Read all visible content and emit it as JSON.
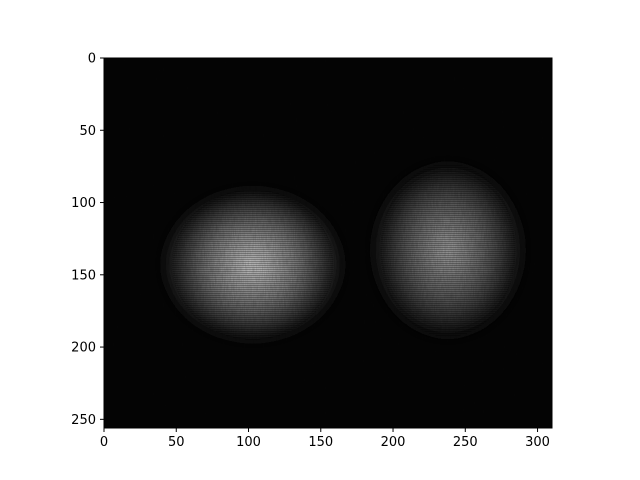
{
  "chart_data": {
    "type": "heatmap",
    "title": "",
    "xlabel": "",
    "ylabel": "",
    "colormap": "gray",
    "background_color": "#050505",
    "grid": false,
    "xlim": [
      0,
      310
    ],
    "ylim": [
      256,
      0
    ],
    "x_ticks": [
      0,
      50,
      100,
      150,
      200,
      250,
      300
    ],
    "y_ticks": [
      0,
      50,
      100,
      150,
      200,
      250
    ],
    "x_tick_labels": [
      "0",
      "50",
      "100",
      "150",
      "200",
      "250",
      "300"
    ],
    "y_tick_labels": [
      "0",
      "50",
      "100",
      "150",
      "200",
      "250"
    ],
    "blobs": [
      {
        "name": "left-blob",
        "cx": 103,
        "cy": 143,
        "rx": 62,
        "ry": 52,
        "peak_intensity": 0.78
      },
      {
        "name": "right-blob",
        "cx": 238,
        "cy": 133,
        "rx": 52,
        "ry": 60,
        "peak_intensity": 0.62
      }
    ]
  }
}
